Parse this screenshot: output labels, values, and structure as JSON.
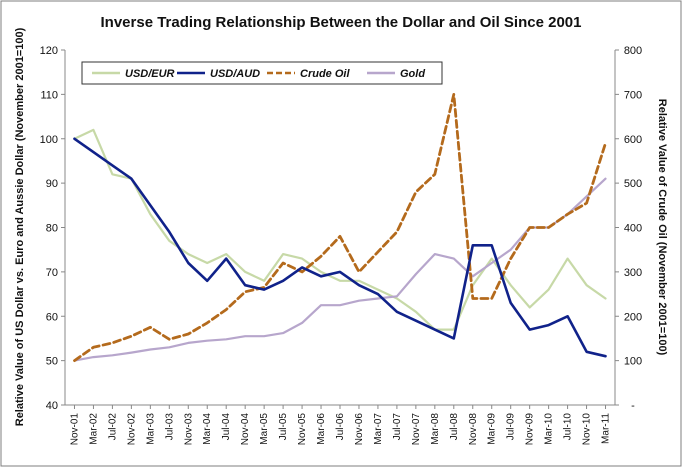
{
  "chart_data": {
    "type": "line",
    "title": "Inverse Trading Relationship Between the Dollar and Oil Since 2001",
    "ylabel": "Relative Value of US Dollar vs. Euro and Aussie Dollar (November 2001=100)",
    "y2label": "Relative Value of Crude Oil (November 2001=100)",
    "ylim": [
      40,
      120
    ],
    "y2lim": [
      0,
      800
    ],
    "yticks": [
      "40",
      "50",
      "60",
      "70",
      "80",
      "90",
      "100",
      "110",
      "120"
    ],
    "y2ticks": [
      "-",
      "100",
      "200",
      "300",
      "400",
      "500",
      "600",
      "700",
      "800"
    ],
    "legend_position": "top-left",
    "grid": false,
    "categories": [
      "Nov-01",
      "Mar-02",
      "Jul-02",
      "Nov-02",
      "Mar-03",
      "Jul-03",
      "Nov-03",
      "Mar-04",
      "Jul-04",
      "Nov-04",
      "Mar-05",
      "Jul-05",
      "Nov-05",
      "Mar-06",
      "Jul-06",
      "Nov-06",
      "Mar-07",
      "Jul-07",
      "Nov-07",
      "Mar-08",
      "Jul-08",
      "Nov-08",
      "Mar-09",
      "Jul-09",
      "Nov-09",
      "Mar-10",
      "Jul-10",
      "Nov-10",
      "Mar-11"
    ],
    "series": [
      {
        "name": "USD/EUR",
        "axis": "left",
        "color": "#c7d9a7",
        "dash": "solid",
        "values": [
          100,
          102,
          92,
          91,
          83,
          77,
          74,
          72,
          74,
          70,
          68,
          74,
          73,
          70,
          68,
          68,
          66,
          64,
          61,
          57,
          57,
          67,
          73,
          67,
          62,
          66,
          73,
          67,
          64
        ]
      },
      {
        "name": "USD/AUD",
        "axis": "left",
        "color": "#10228a",
        "dash": "solid",
        "values": [
          100,
          97,
          94,
          91,
          85,
          79,
          72,
          68,
          73,
          67,
          66,
          68,
          71,
          69,
          70,
          67,
          65,
          61,
          59,
          57,
          55,
          76,
          76,
          63,
          57,
          58,
          60,
          52,
          51
        ]
      },
      {
        "name": "Crude Oil",
        "axis": "right",
        "color": "#b46a1c",
        "dash": "dashed",
        "values": [
          100,
          130,
          140,
          155,
          175,
          148,
          160,
          185,
          215,
          255,
          265,
          320,
          300,
          335,
          380,
          300,
          345,
          390,
          480,
          520,
          700,
          240,
          240,
          330,
          400,
          400,
          430,
          455,
          590
        ]
      },
      {
        "name": "Gold",
        "axis": "right",
        "color": "#b7a6cc",
        "dash": "solid",
        "values": [
          100,
          108,
          112,
          118,
          125,
          130,
          140,
          145,
          148,
          155,
          155,
          162,
          185,
          225,
          225,
          235,
          240,
          245,
          295,
          340,
          330,
          290,
          320,
          350,
          400,
          400,
          430,
          470,
          510
        ]
      }
    ]
  }
}
